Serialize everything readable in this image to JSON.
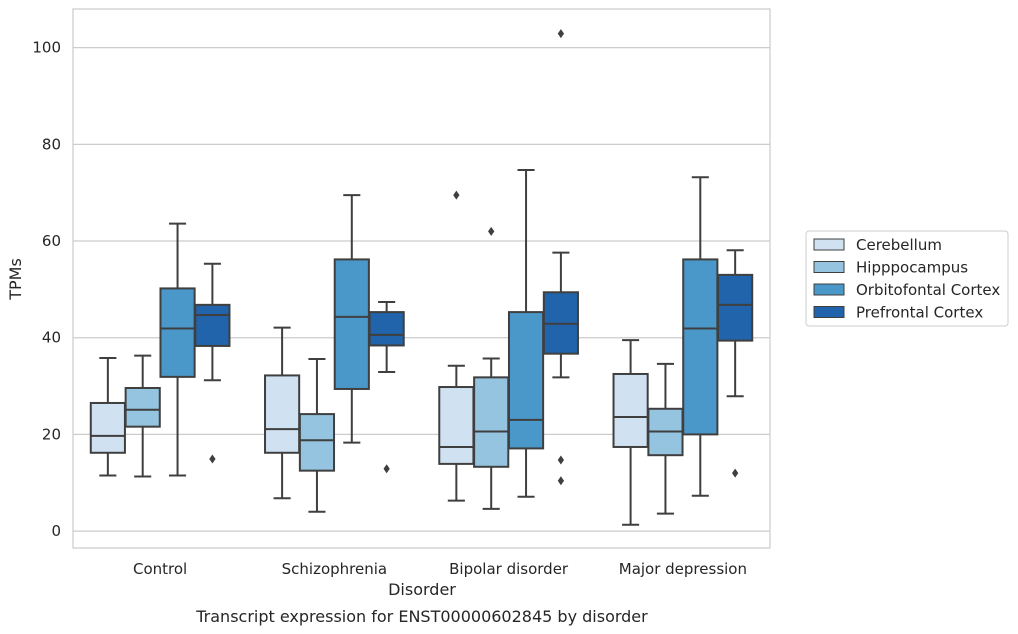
{
  "caption": "Transcript expression for ENST00000602845 by disorder",
  "chart_data": {
    "type": "boxplot",
    "xlabel": "Disorder",
    "ylabel": "TPMs",
    "ylim": [
      -3.5,
      108
    ],
    "yticks": [
      0,
      20,
      40,
      60,
      80,
      100
    ],
    "grid": true,
    "legend_position": "right",
    "categories": [
      "Control",
      "Schizophrenia",
      "Bipolar disorder",
      "Major depression"
    ],
    "series": [
      {
        "name": "Cerebellum",
        "color": "#d0e1f2",
        "boxes": [
          {
            "whislo": 11.5,
            "q1": 16.2,
            "med": 19.7,
            "q3": 26.5,
            "whishi": 35.8,
            "fliers": []
          },
          {
            "whislo": 6.8,
            "q1": 16.2,
            "med": 21.1,
            "q3": 32.2,
            "whishi": 42.1,
            "fliers": []
          },
          {
            "whislo": 6.3,
            "q1": 13.9,
            "med": 17.4,
            "q3": 29.8,
            "whishi": 34.2,
            "fliers": [
              69.5
            ]
          },
          {
            "whislo": 1.3,
            "q1": 17.4,
            "med": 23.6,
            "q3": 32.5,
            "whishi": 39.5,
            "fliers": []
          }
        ]
      },
      {
        "name": "Hipppocampus",
        "color": "#94c4df",
        "boxes": [
          {
            "whislo": 11.3,
            "q1": 21.6,
            "med": 25.1,
            "q3": 29.6,
            "whishi": 36.3,
            "fliers": []
          },
          {
            "whislo": 4.0,
            "q1": 12.5,
            "med": 18.8,
            "q3": 24.2,
            "whishi": 35.6,
            "fliers": []
          },
          {
            "whislo": 4.6,
            "q1": 13.3,
            "med": 20.6,
            "q3": 31.8,
            "whishi": 35.7,
            "fliers": [
              62.0
            ]
          },
          {
            "whislo": 3.6,
            "q1": 15.7,
            "med": 20.6,
            "q3": 25.3,
            "whishi": 34.6,
            "fliers": []
          }
        ]
      },
      {
        "name": "Orbitofontal Cortex",
        "color": "#4a98c9",
        "boxes": [
          {
            "whislo": 11.5,
            "q1": 31.9,
            "med": 41.9,
            "q3": 50.2,
            "whishi": 63.6,
            "fliers": []
          },
          {
            "whislo": 18.3,
            "q1": 29.4,
            "med": 44.3,
            "q3": 56.2,
            "whishi": 69.5,
            "fliers": []
          },
          {
            "whislo": 7.1,
            "q1": 17.1,
            "med": 23.0,
            "q3": 45.3,
            "whishi": 74.7,
            "fliers": []
          },
          {
            "whislo": 7.3,
            "q1": 20.0,
            "med": 41.9,
            "q3": 56.2,
            "whishi": 73.2,
            "fliers": []
          }
        ]
      },
      {
        "name": "Prefrontal Cortex",
        "color": "#2164ab",
        "boxes": [
          {
            "whislo": 31.2,
            "q1": 38.3,
            "med": 44.7,
            "q3": 46.8,
            "whishi": 55.3,
            "fliers": [
              14.9
            ]
          },
          {
            "whislo": 32.9,
            "q1": 38.4,
            "med": 40.6,
            "q3": 45.3,
            "whishi": 47.4,
            "fliers": [
              12.9
            ]
          },
          {
            "whislo": 31.8,
            "q1": 36.7,
            "med": 42.9,
            "q3": 49.4,
            "whishi": 57.6,
            "fliers": [
              102.9,
              14.7,
              10.4
            ]
          },
          {
            "whislo": 27.9,
            "q1": 39.4,
            "med": 46.8,
            "q3": 53.0,
            "whishi": 58.1,
            "fliers": [
              12.0
            ]
          }
        ]
      }
    ]
  }
}
